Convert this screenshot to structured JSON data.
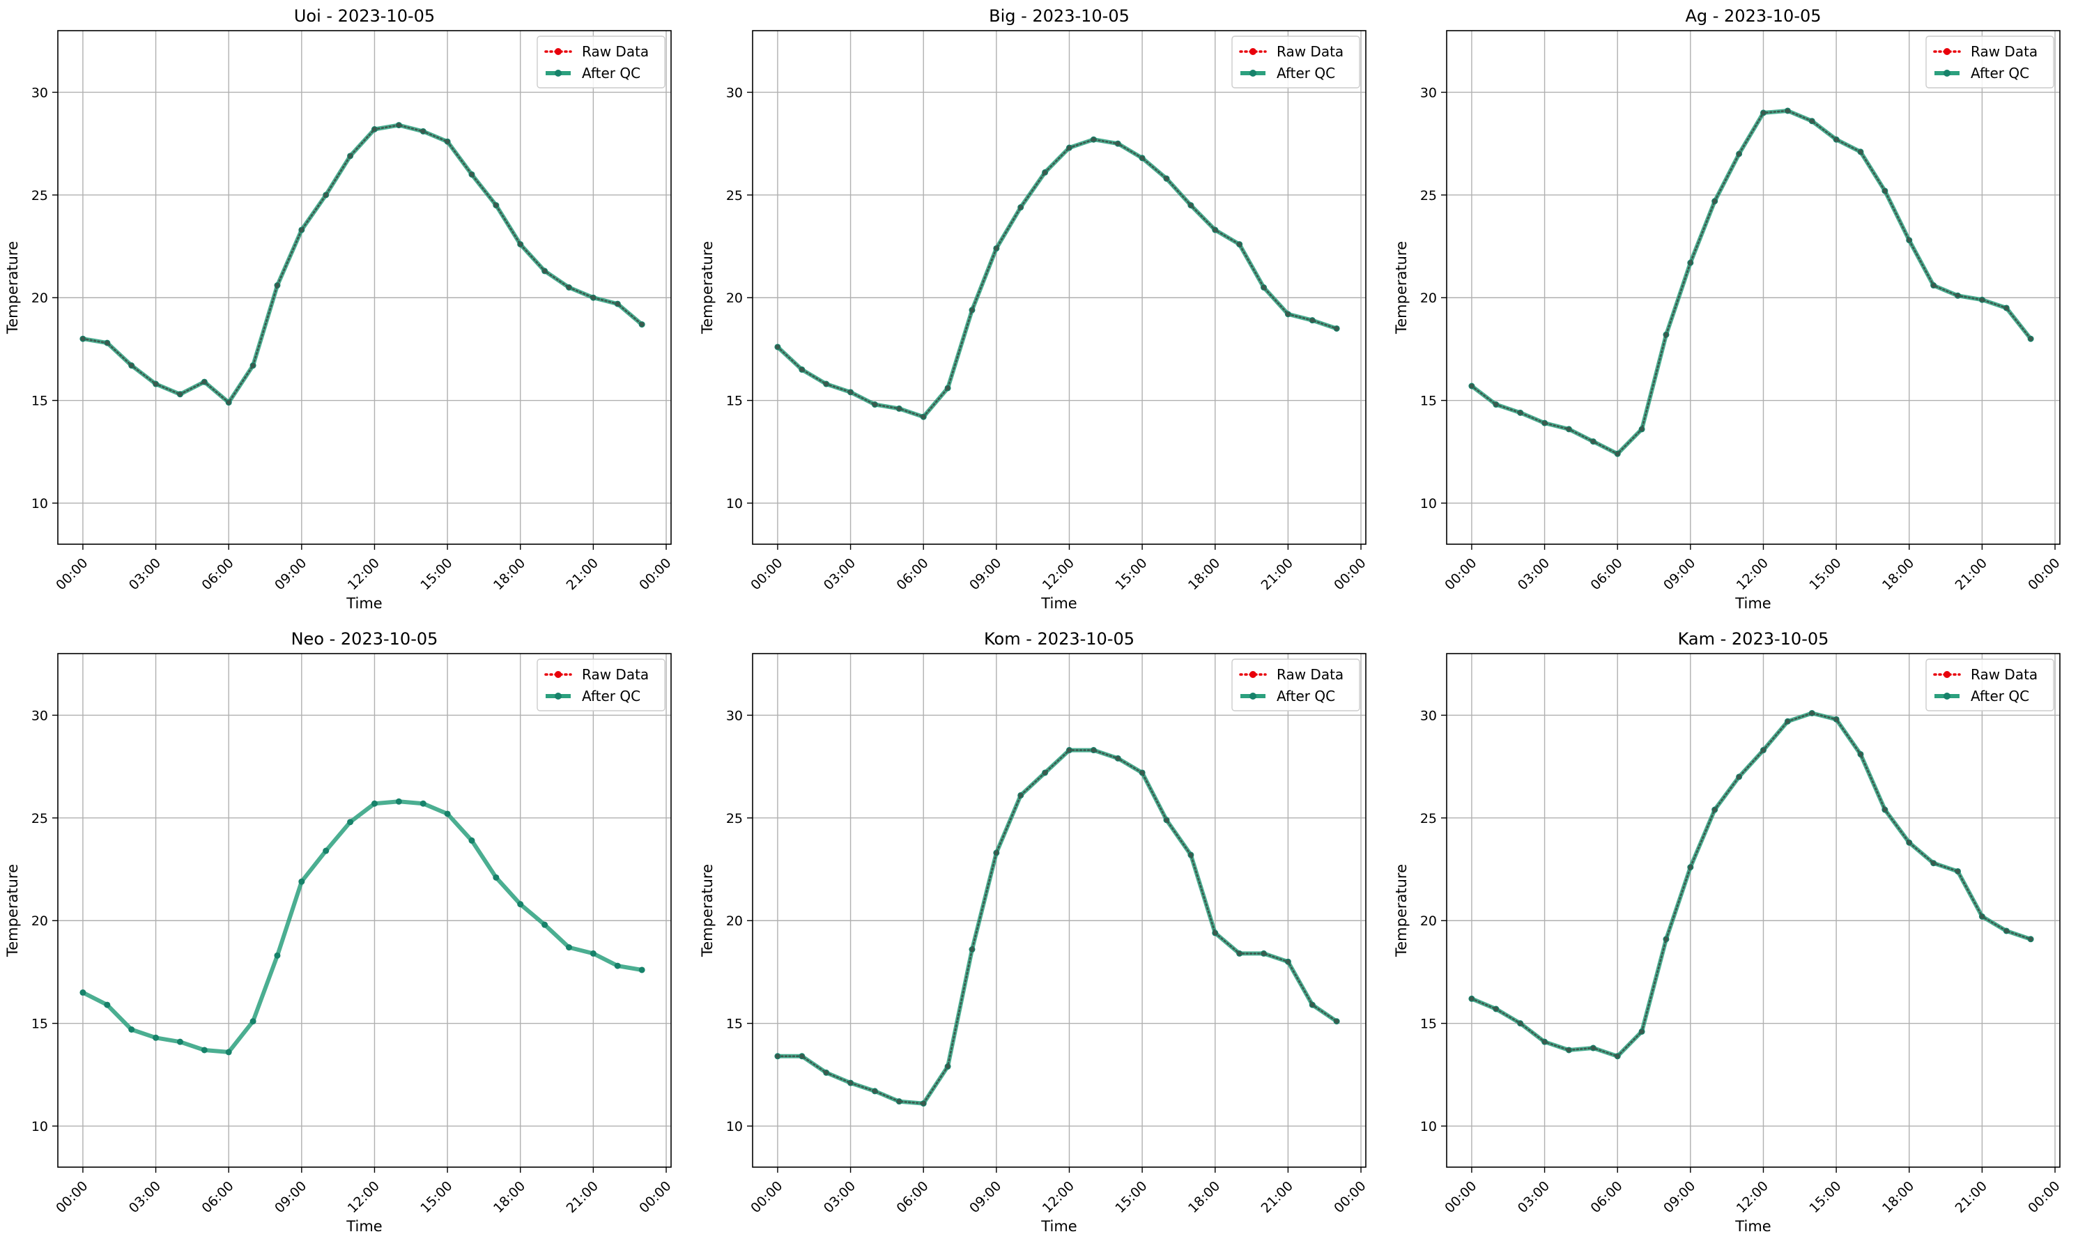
{
  "legend_labels": [
    "Raw Data",
    "After QC"
  ],
  "colors": {
    "raw": "#e8000b",
    "qc": "#2ca07e",
    "qc_marker": "#17826a",
    "overlap_dots": "#3b5a4e",
    "grid": "#b0b0b0"
  },
  "chart_data": [
    {
      "type": "line",
      "title": "Uoi - 2023-10-05",
      "xlabel": "Time",
      "ylabel": "Temperature",
      "x_hours": [
        0,
        1,
        2,
        3,
        4,
        5,
        6,
        7,
        8,
        9,
        10,
        11,
        12,
        13,
        14,
        15,
        16,
        17,
        18,
        19,
        20,
        21,
        22,
        23
      ],
      "x_ticks": [
        "00:00",
        "03:00",
        "06:00",
        "09:00",
        "12:00",
        "15:00",
        "18:00",
        "21:00",
        "00:00"
      ],
      "ylim": [
        8,
        33
      ],
      "y_ticks": [
        10,
        15,
        20,
        25,
        30
      ],
      "grid": true,
      "legend": "top-right",
      "raw_visible": true,
      "series": [
        {
          "name": "Raw Data",
          "values": [
            18.0,
            17.8,
            16.7,
            15.8,
            15.3,
            15.9,
            14.9,
            16.7,
            20.6,
            23.3,
            25.0,
            26.9,
            28.2,
            28.4,
            28.1,
            27.6,
            26.0,
            24.5,
            22.6,
            21.3,
            20.5,
            20.0,
            19.7,
            18.7
          ]
        },
        {
          "name": "After QC",
          "values": [
            18.0,
            17.8,
            16.7,
            15.8,
            15.3,
            15.9,
            14.9,
            16.7,
            20.6,
            23.3,
            25.0,
            26.9,
            28.2,
            28.4,
            28.1,
            27.6,
            26.0,
            24.5,
            22.6,
            21.3,
            20.5,
            20.0,
            19.7,
            18.7
          ]
        }
      ]
    },
    {
      "type": "line",
      "title": "Big - 2023-10-05",
      "xlabel": "Time",
      "ylabel": "Temperature",
      "x_hours": [
        0,
        1,
        2,
        3,
        4,
        5,
        6,
        7,
        8,
        9,
        10,
        11,
        12,
        13,
        14,
        15,
        16,
        17,
        18,
        19,
        20,
        21,
        22,
        23
      ],
      "x_ticks": [
        "00:00",
        "03:00",
        "06:00",
        "09:00",
        "12:00",
        "15:00",
        "18:00",
        "21:00",
        "00:00"
      ],
      "ylim": [
        8,
        33
      ],
      "y_ticks": [
        10,
        15,
        20,
        25,
        30
      ],
      "grid": true,
      "legend": "top-right",
      "raw_visible": true,
      "series": [
        {
          "name": "Raw Data",
          "values": [
            17.6,
            16.5,
            15.8,
            15.4,
            14.8,
            14.6,
            14.2,
            15.6,
            19.4,
            22.4,
            24.4,
            26.1,
            27.3,
            27.7,
            27.5,
            26.8,
            25.8,
            24.5,
            23.3,
            22.6,
            20.5,
            19.2,
            18.9,
            18.5
          ]
        },
        {
          "name": "After QC",
          "values": [
            17.6,
            16.5,
            15.8,
            15.4,
            14.8,
            14.6,
            14.2,
            15.6,
            19.4,
            22.4,
            24.4,
            26.1,
            27.3,
            27.7,
            27.5,
            26.8,
            25.8,
            24.5,
            23.3,
            22.6,
            20.5,
            19.2,
            18.9,
            18.5
          ]
        }
      ]
    },
    {
      "type": "line",
      "title": "Ag - 2023-10-05",
      "xlabel": "Time",
      "ylabel": "Temperature",
      "x_hours": [
        0,
        1,
        2,
        3,
        4,
        5,
        6,
        7,
        8,
        9,
        10,
        11,
        12,
        13,
        14,
        15,
        16,
        17,
        18,
        19,
        20,
        21,
        22,
        23
      ],
      "x_ticks": [
        "00:00",
        "03:00",
        "06:00",
        "09:00",
        "12:00",
        "15:00",
        "18:00",
        "21:00",
        "00:00"
      ],
      "ylim": [
        8,
        33
      ],
      "y_ticks": [
        10,
        15,
        20,
        25,
        30
      ],
      "grid": true,
      "legend": "top-right",
      "raw_visible": true,
      "series": [
        {
          "name": "Raw Data",
          "values": [
            15.7,
            14.8,
            14.4,
            13.9,
            13.6,
            13.0,
            12.4,
            13.6,
            18.2,
            21.7,
            24.7,
            27.0,
            29.0,
            29.1,
            28.6,
            27.7,
            27.1,
            25.2,
            22.8,
            20.6,
            20.1,
            19.9,
            19.5,
            18.0
          ]
        },
        {
          "name": "After QC",
          "values": [
            15.7,
            14.8,
            14.4,
            13.9,
            13.6,
            13.0,
            12.4,
            13.6,
            18.2,
            21.7,
            24.7,
            27.0,
            29.0,
            29.1,
            28.6,
            27.7,
            27.1,
            25.2,
            22.8,
            20.6,
            20.1,
            19.9,
            19.5,
            18.0
          ]
        }
      ]
    },
    {
      "type": "line",
      "title": "Neo - 2023-10-05",
      "xlabel": "Time",
      "ylabel": "Temperature",
      "x_hours": [
        0,
        1,
        2,
        3,
        4,
        5,
        6,
        7,
        8,
        9,
        10,
        11,
        12,
        13,
        14,
        15,
        16,
        17,
        18,
        19,
        20,
        21,
        22,
        23
      ],
      "x_ticks": [
        "00:00",
        "03:00",
        "06:00",
        "09:00",
        "12:00",
        "15:00",
        "18:00",
        "21:00",
        "00:00"
      ],
      "ylim": [
        8,
        33
      ],
      "y_ticks": [
        10,
        15,
        20,
        25,
        30
      ],
      "grid": true,
      "legend": "top-right",
      "raw_visible": false,
      "series": [
        {
          "name": "Raw Data",
          "values": [
            16.5,
            15.9,
            14.7,
            14.3,
            14.1,
            13.7,
            13.6,
            15.1,
            18.3,
            21.9,
            23.4,
            24.8,
            25.7,
            25.8,
            25.7,
            25.2,
            23.9,
            22.1,
            20.8,
            19.8,
            18.7,
            18.4,
            17.8,
            17.6
          ]
        },
        {
          "name": "After QC",
          "values": [
            16.5,
            15.9,
            14.7,
            14.3,
            14.1,
            13.7,
            13.6,
            15.1,
            18.3,
            21.9,
            23.4,
            24.8,
            25.7,
            25.8,
            25.7,
            25.2,
            23.9,
            22.1,
            20.8,
            19.8,
            18.7,
            18.4,
            17.8,
            17.6
          ]
        }
      ]
    },
    {
      "type": "line",
      "title": "Kom - 2023-10-05",
      "xlabel": "Time",
      "ylabel": "Temperature",
      "x_hours": [
        0,
        1,
        2,
        3,
        4,
        5,
        6,
        7,
        8,
        9,
        10,
        11,
        12,
        13,
        14,
        15,
        16,
        17,
        18,
        19,
        20,
        21,
        22,
        23
      ],
      "x_ticks": [
        "00:00",
        "03:00",
        "06:00",
        "09:00",
        "12:00",
        "15:00",
        "18:00",
        "21:00",
        "00:00"
      ],
      "ylim": [
        8,
        33
      ],
      "y_ticks": [
        10,
        15,
        20,
        25,
        30
      ],
      "grid": true,
      "legend": "top-right",
      "raw_visible": true,
      "series": [
        {
          "name": "Raw Data",
          "values": [
            13.4,
            13.4,
            12.6,
            12.1,
            11.7,
            11.2,
            11.1,
            12.9,
            18.6,
            23.3,
            26.1,
            27.2,
            28.3,
            28.3,
            27.9,
            27.2,
            24.9,
            23.2,
            19.4,
            18.4,
            18.4,
            18.0,
            15.9,
            15.1
          ]
        },
        {
          "name": "After QC",
          "values": [
            13.4,
            13.4,
            12.6,
            12.1,
            11.7,
            11.2,
            11.1,
            12.9,
            18.6,
            23.3,
            26.1,
            27.2,
            28.3,
            28.3,
            27.9,
            27.2,
            24.9,
            23.2,
            19.4,
            18.4,
            18.4,
            18.0,
            15.9,
            15.1
          ]
        }
      ]
    },
    {
      "type": "line",
      "title": "Kam - 2023-10-05",
      "xlabel": "Time",
      "ylabel": "Temperature",
      "x_hours": [
        0,
        1,
        2,
        3,
        4,
        5,
        6,
        7,
        8,
        9,
        10,
        11,
        12,
        13,
        14,
        15,
        16,
        17,
        18,
        19,
        20,
        21,
        22,
        23
      ],
      "x_ticks": [
        "00:00",
        "03:00",
        "06:00",
        "09:00",
        "12:00",
        "15:00",
        "18:00",
        "21:00",
        "00:00"
      ],
      "ylim": [
        8,
        33
      ],
      "y_ticks": [
        10,
        15,
        20,
        25,
        30
      ],
      "grid": true,
      "legend": "top-right",
      "raw_visible": true,
      "series": [
        {
          "name": "Raw Data",
          "values": [
            16.2,
            15.7,
            15.0,
            14.1,
            13.7,
            13.8,
            13.4,
            14.6,
            19.1,
            22.6,
            25.4,
            27.0,
            28.3,
            29.7,
            30.1,
            29.8,
            28.1,
            25.4,
            23.8,
            22.8,
            22.4,
            20.2,
            19.5,
            19.1
          ]
        },
        {
          "name": "After QC",
          "values": [
            16.2,
            15.7,
            15.0,
            14.1,
            13.7,
            13.8,
            13.4,
            14.6,
            19.1,
            22.6,
            25.4,
            27.0,
            28.3,
            29.7,
            30.1,
            29.8,
            28.1,
            25.4,
            23.8,
            22.8,
            22.4,
            20.2,
            19.5,
            19.1
          ]
        }
      ]
    }
  ]
}
